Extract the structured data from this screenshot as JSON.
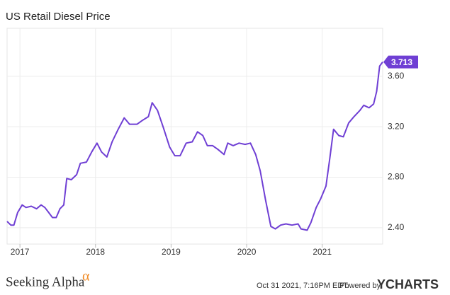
{
  "chart_data": {
    "type": "line",
    "title": "US Retail Diesel Price",
    "x": [
      2016.83,
      2016.88,
      2016.92,
      2016.97,
      2017.03,
      2017.08,
      2017.15,
      2017.22,
      2017.28,
      2017.33,
      2017.38,
      2017.43,
      2017.48,
      2017.53,
      2017.58,
      2017.62,
      2017.68,
      2017.75,
      2017.8,
      2017.88,
      2017.95,
      2018.02,
      2018.08,
      2018.15,
      2018.22,
      2018.3,
      2018.38,
      2018.45,
      2018.55,
      2018.62,
      2018.7,
      2018.75,
      2018.82,
      2018.9,
      2018.98,
      2019.05,
      2019.12,
      2019.2,
      2019.28,
      2019.35,
      2019.42,
      2019.48,
      2019.55,
      2019.62,
      2019.7,
      2019.75,
      2019.82,
      2019.9,
      2019.98,
      2020.05,
      2020.12,
      2020.18,
      2020.25,
      2020.32,
      2020.38,
      2020.45,
      2020.52,
      2020.6,
      2020.68,
      2020.72,
      2020.8,
      2020.85,
      2020.92,
      2020.98,
      2021.05,
      2021.1,
      2021.15,
      2021.22,
      2021.28,
      2021.35,
      2021.42,
      2021.5,
      2021.55,
      2021.62,
      2021.68,
      2021.72,
      2021.76,
      2021.8
    ],
    "series": [
      {
        "name": "US Retail Diesel Price",
        "color": "#6f3fd4",
        "values": [
          2.45,
          2.42,
          2.42,
          2.52,
          2.58,
          2.56,
          2.57,
          2.55,
          2.58,
          2.56,
          2.52,
          2.48,
          2.48,
          2.55,
          2.58,
          2.79,
          2.78,
          2.82,
          2.91,
          2.92,
          3.0,
          3.07,
          3.0,
          2.96,
          3.08,
          3.18,
          3.27,
          3.22,
          3.22,
          3.25,
          3.28,
          3.39,
          3.33,
          3.19,
          3.04,
          2.97,
          2.97,
          3.07,
          3.08,
          3.16,
          3.13,
          3.05,
          3.05,
          3.02,
          2.98,
          3.07,
          3.05,
          3.07,
          3.06,
          3.07,
          2.98,
          2.85,
          2.62,
          2.41,
          2.39,
          2.42,
          2.43,
          2.42,
          2.43,
          2.39,
          2.38,
          2.44,
          2.56,
          2.63,
          2.73,
          2.95,
          3.18,
          3.13,
          3.12,
          3.23,
          3.28,
          3.33,
          3.37,
          3.35,
          3.38,
          3.48,
          3.68,
          3.713
        ]
      }
    ],
    "xlim": [
      2016.83,
      2021.8
    ],
    "xticks": [
      2017,
      2018,
      2019,
      2020,
      2021
    ],
    "ylim": [
      2.27,
      3.98
    ],
    "yticks": [
      {
        "value": 2.4,
        "label": "2.40"
      },
      {
        "value": 2.8,
        "label": "2.80"
      },
      {
        "value": 3.2,
        "label": "3.20"
      },
      {
        "value": 3.6,
        "label": "3.60"
      }
    ],
    "grid": true
  },
  "footer": {
    "brand": "Seeking Alpha",
    "brand_mark": "α",
    "timestamp": "Oct 31 2021, 7:16PM EDT.",
    "powered": "Powered by",
    "provider": "YCHARTS"
  }
}
